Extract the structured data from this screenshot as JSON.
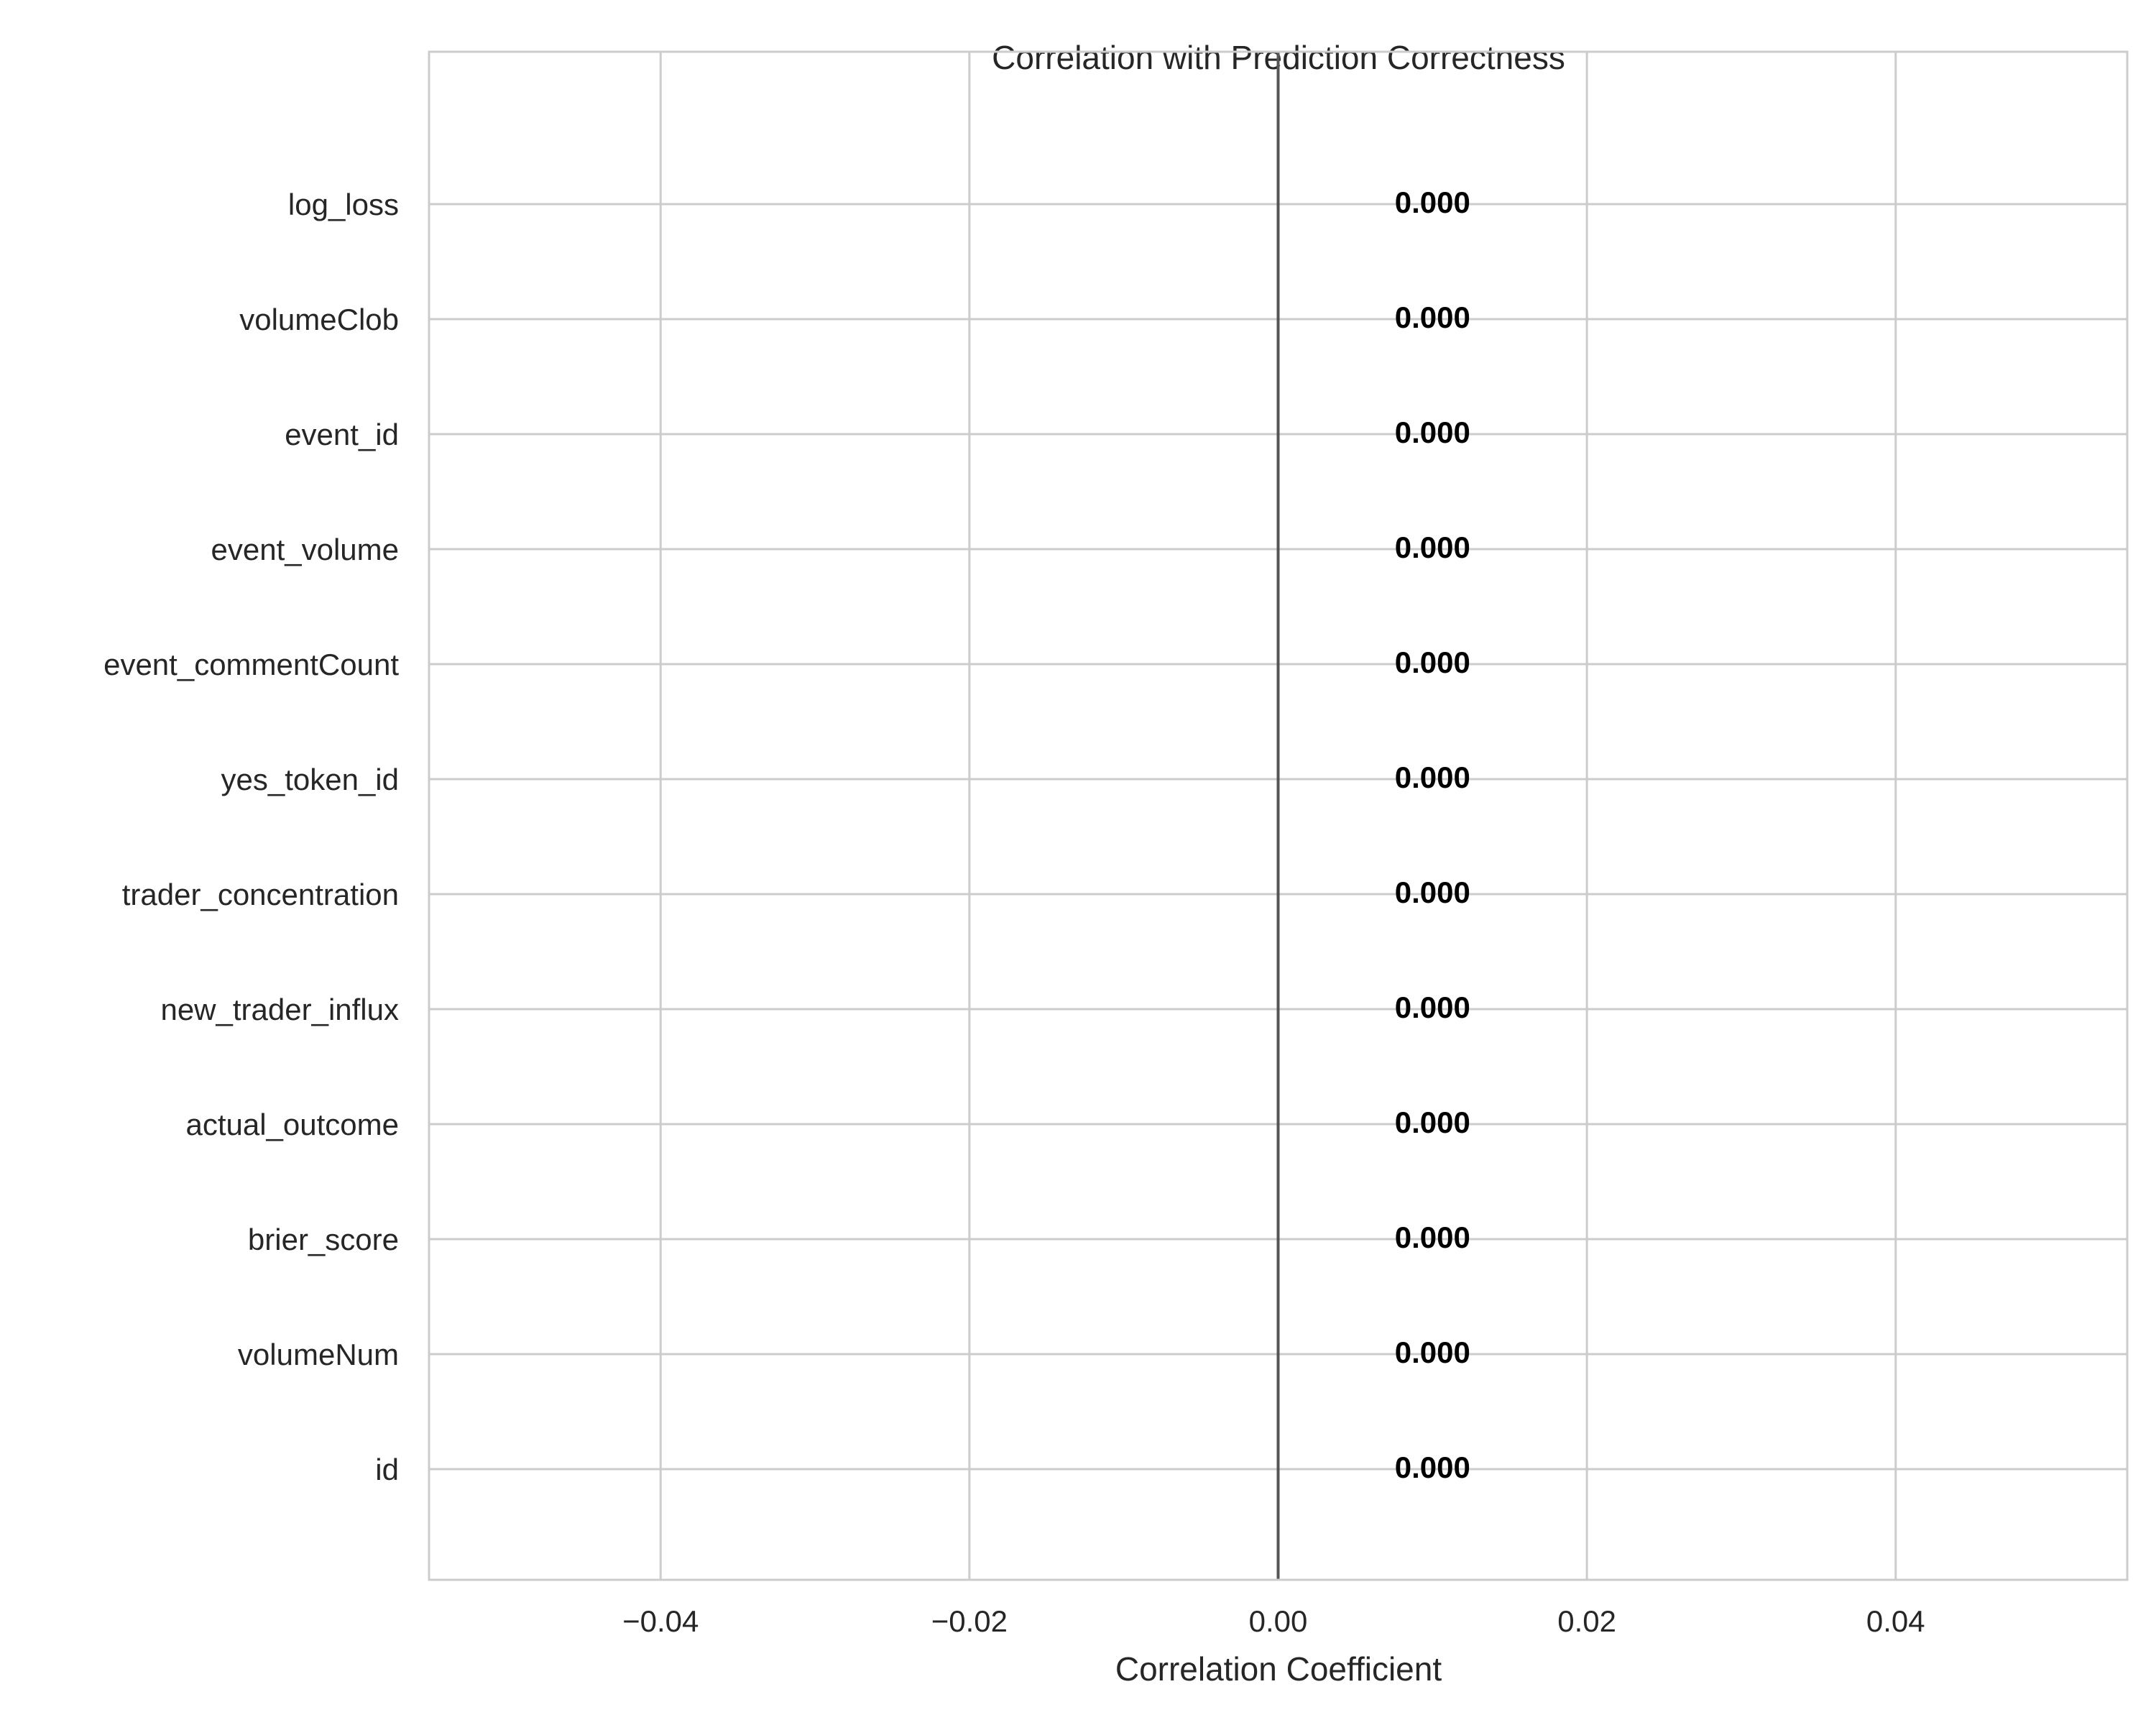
{
  "chart_data": {
    "type": "bar",
    "orientation": "horizontal",
    "title": "Correlation with Prediction Correctness",
    "xlabel": "Correlation Coefficient",
    "ylabel": "",
    "categories": [
      "log_loss",
      "volumeClob",
      "event_id",
      "event_volume",
      "event_commentCount",
      "yes_token_id",
      "trader_concentration",
      "new_trader_influx",
      "actual_outcome",
      "brier_score",
      "volumeNum",
      "id"
    ],
    "values": [
      0,
      0,
      0,
      0,
      0,
      0,
      0,
      0,
      0,
      0,
      0,
      0
    ],
    "data_labels": [
      "0.000",
      "0.000",
      "0.000",
      "0.000",
      "0.000",
      "0.000",
      "0.000",
      "0.000",
      "0.000",
      "0.000",
      "0.000",
      "0.000"
    ],
    "xlim": [
      -0.055,
      0.055
    ],
    "xticks": [
      -0.04,
      -0.02,
      0.0,
      0.02,
      0.04
    ],
    "xtick_labels": [
      "−0.04",
      "−0.02",
      "0.00",
      "0.02",
      "0.04"
    ],
    "grid": true,
    "reference_line_x": 0,
    "colors": {
      "grid": "#cccccc",
      "spine": "#cccccc",
      "zero_line": "#555555",
      "text": "#262626",
      "data_label": "#000000"
    }
  }
}
